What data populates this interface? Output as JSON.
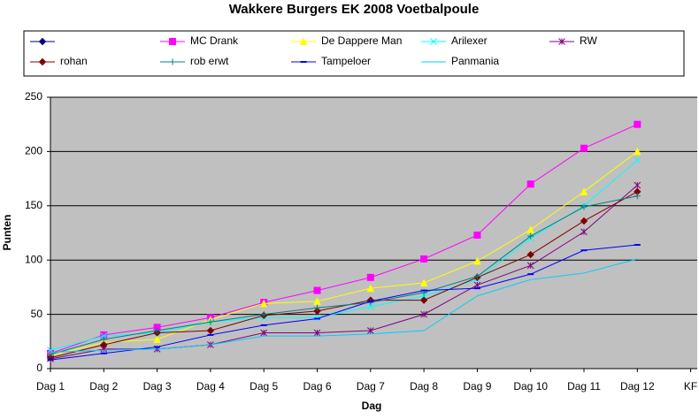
{
  "chart_data": {
    "type": "line",
    "title": "Wakkere Burgers EK 2008 Voetbalpoule",
    "x_label": "Dag",
    "y_label": "Punten",
    "categories": [
      "Dag 1",
      "Dag 2",
      "Dag 3",
      "Dag 4",
      "Dag 5",
      "Dag 6",
      "Dag 7",
      "Dag 8",
      "Dag 9",
      "Dag 10",
      "Dag 11",
      "Dag 12",
      "KF"
    ],
    "ylim": [
      0,
      250
    ],
    "yticks": [
      0,
      50,
      100,
      150,
      200,
      250
    ],
    "grid": true,
    "series": [
      {
        "name": null,
        "color": "#000080",
        "marker": "diamond",
        "values": [
          null,
          null,
          null,
          null,
          null,
          null,
          null,
          null,
          null,
          null,
          null,
          null,
          null
        ]
      },
      {
        "name": "MC Drank",
        "color": "#ff00ff",
        "marker": "square",
        "values": [
          14,
          31,
          38,
          47,
          61,
          72,
          84,
          101,
          123,
          170,
          203,
          225,
          null
        ]
      },
      {
        "name": "De Dappere Man",
        "color": "#ffff00",
        "marker": "triangle",
        "values": [
          12,
          24,
          27,
          45,
          60,
          62,
          74,
          79,
          99,
          128,
          163,
          200,
          null
        ]
      },
      {
        "name": "Arilexer",
        "color": "#00ffff",
        "marker": "x",
        "values": [
          17,
          30,
          33,
          43,
          47,
          47,
          57,
          67,
          82,
          120,
          150,
          192,
          null
        ]
      },
      {
        "name": "RW",
        "color": "#800080",
        "marker": "star",
        "values": [
          9,
          18,
          18,
          22,
          33,
          33,
          35,
          50,
          77,
          95,
          126,
          169,
          null
        ]
      },
      {
        "name": "rohan",
        "color": "#800000",
        "marker": "diamond",
        "values": [
          10,
          22,
          33,
          35,
          49,
          53,
          63,
          63,
          84,
          105,
          136,
          163,
          null
        ]
      },
      {
        "name": "rob erwt",
        "color": "#008080",
        "marker": "plus",
        "values": [
          13,
          27,
          35,
          43,
          50,
          56,
          61,
          70,
          85,
          122,
          149,
          159,
          null
        ]
      },
      {
        "name": "Tampeloer",
        "color": "#0000ff",
        "marker": "dash",
        "values": [
          8,
          14,
          20,
          31,
          40,
          46,
          62,
          72,
          74,
          87,
          109,
          114,
          null
        ]
      },
      {
        "name": "Panmania",
        "color": "#00ccff",
        "marker": "none",
        "values": [
          15,
          17,
          18,
          22,
          30,
          30,
          32,
          35,
          67,
          82,
          88,
          101,
          null
        ]
      }
    ]
  }
}
